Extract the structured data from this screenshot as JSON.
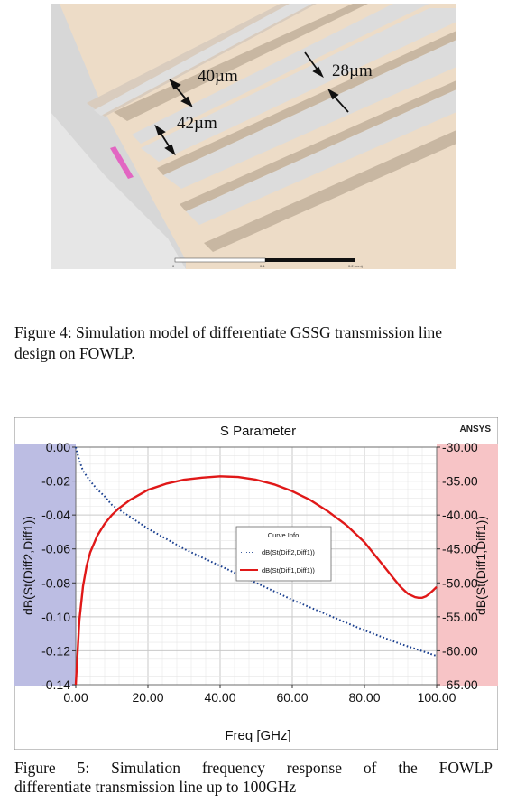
{
  "figure4": {
    "labels": {
      "width_40": "40µm",
      "width_42": "42µm",
      "width_28": "28µm"
    },
    "scale_ticks": [
      "0",
      "0.1",
      "0.2 (mm)"
    ],
    "caption_line1": "Figure 4: Simulation model of differentiate GSSG transmission line",
    "caption_line2": "design on FOWLP."
  },
  "figure5": {
    "brand": "ANSYS",
    "caption_line1": "Figure  5:  Simulation  frequency  response  of  the  FOWLP",
    "caption_line2": "differentiate transmission line up to 100GHz",
    "legend": {
      "title": "Curve Info",
      "dots": "·····",
      "item1": "dB(St(Diff2,Diff1))",
      "item2": "dB(St(Diff1,Diff1))"
    }
  },
  "chart_data": {
    "type": "line",
    "title": "S Parameter",
    "xlabel": "Freq [GHz]",
    "ylabel_left": "dB(St(Diff2,Diff1))",
    "ylabel_right": "dB(St(Diff1,Diff1))",
    "xlim": [
      0,
      100
    ],
    "ylim_left": [
      -0.14,
      0.0
    ],
    "ylim_right": [
      -65,
      -30
    ],
    "x_ticks": [
      "0.00",
      "20.00",
      "40.00",
      "60.00",
      "80.00",
      "100.00"
    ],
    "y_left_ticks": [
      "0.00",
      "-0.02",
      "-0.04",
      "-0.06",
      "-0.08",
      "-0.10",
      "-0.12",
      "-0.14"
    ],
    "y_right_ticks": [
      "-30.00",
      "-35.00",
      "-40.00",
      "-45.00",
      "-50.00",
      "-55.00",
      "-60.00",
      "-65.00"
    ],
    "grid": true,
    "legend_position": "center-right",
    "series": [
      {
        "name": "dB(St(Diff2,Diff1))",
        "axis": "left",
        "style": "dotted",
        "color": "#1a3f8f",
        "x": [
          0,
          1,
          2,
          4,
          6,
          8,
          10,
          15,
          20,
          25,
          30,
          40,
          50,
          60,
          70,
          80,
          90,
          100
        ],
        "y": [
          0.0,
          -0.008,
          -0.014,
          -0.02,
          -0.025,
          -0.029,
          -0.034,
          -0.041,
          -0.048,
          -0.054,
          -0.06,
          -0.07,
          -0.08,
          -0.09,
          -0.099,
          -0.108,
          -0.116,
          -0.123
        ]
      },
      {
        "name": "dB(St(Diff1,Diff1))",
        "axis": "right",
        "style": "solid",
        "color": "#e01818",
        "x": [
          0,
          1,
          2,
          3,
          4,
          6,
          8,
          10,
          12,
          15,
          20,
          25,
          30,
          35,
          40,
          45,
          50,
          55,
          60,
          65,
          70,
          75,
          80,
          85,
          88,
          90,
          92,
          94,
          95,
          96,
          97,
          98,
          99,
          100
        ],
        "y": [
          -65,
          -55.5,
          -50.5,
          -47.5,
          -45.5,
          -43.0,
          -41.3,
          -40.0,
          -39.0,
          -37.8,
          -36.3,
          -35.4,
          -34.8,
          -34.5,
          -34.3,
          -34.4,
          -34.8,
          -35.5,
          -36.5,
          -37.8,
          -39.5,
          -41.5,
          -44.0,
          -47.3,
          -49.3,
          -50.6,
          -51.6,
          -52.1,
          -52.2,
          -52.2,
          -52.0,
          -51.6,
          -51.1,
          -50.6
        ]
      }
    ]
  }
}
